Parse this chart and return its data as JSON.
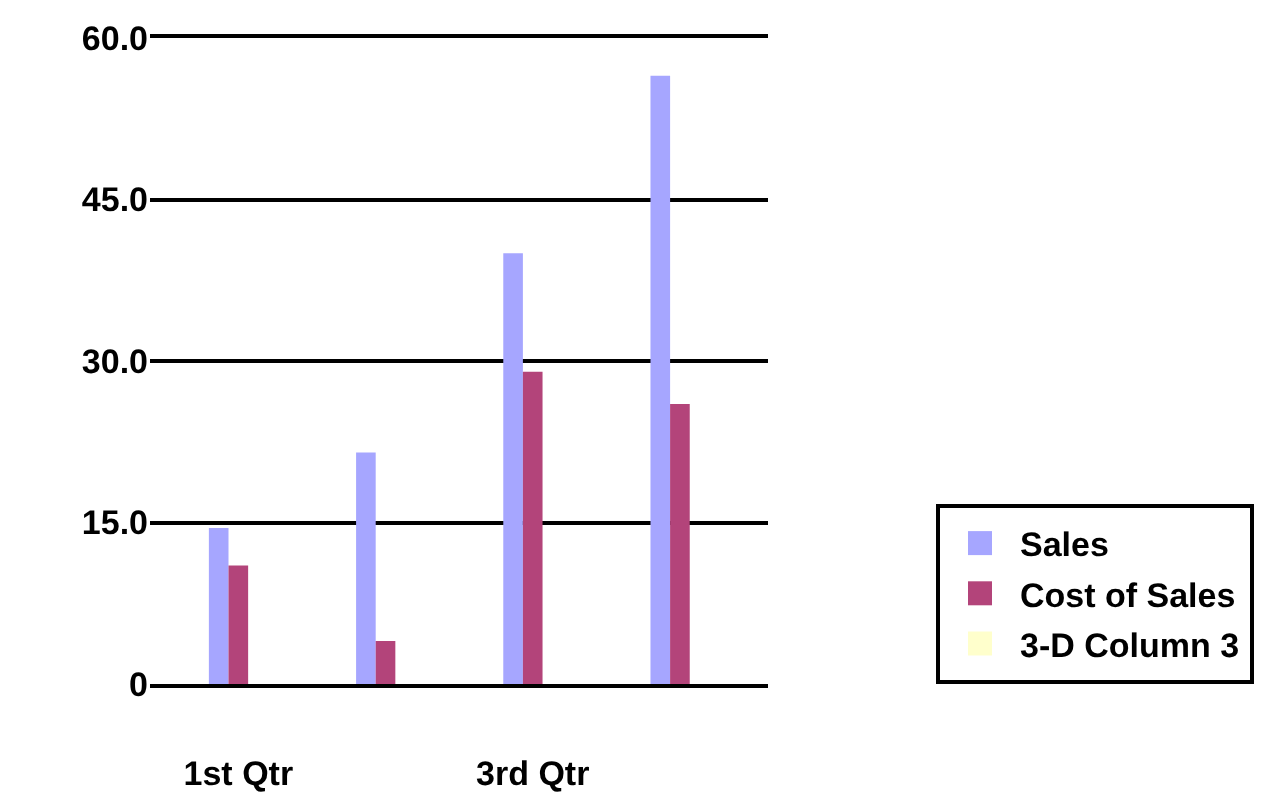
{
  "chart_data": {
    "type": "bar",
    "categories": [
      "1st Qtr",
      null,
      "3rd Qtr",
      null
    ],
    "series": [
      {
        "name": "Sales",
        "color": "#a6a6ff",
        "values": [
          14.5,
          21.5,
          40,
          56.5
        ]
      },
      {
        "name": "Cost of Sales",
        "color": "#b3447a",
        "values": [
          11,
          4,
          29,
          26
        ]
      },
      {
        "name": "3-D Column 3",
        "color": "#ffffcc",
        "values": [
          null,
          null,
          null,
          null
        ]
      }
    ],
    "ylim": [
      0,
      60
    ],
    "yticks": [
      {
        "value": 0,
        "label": "0"
      },
      {
        "value": 15,
        "label": "15.0"
      },
      {
        "value": 30,
        "label": "30.0"
      },
      {
        "value": 45,
        "label": "45.0"
      },
      {
        "value": 60,
        "label": "60.0"
      }
    ],
    "grid": "y",
    "legend": "bottom right"
  }
}
